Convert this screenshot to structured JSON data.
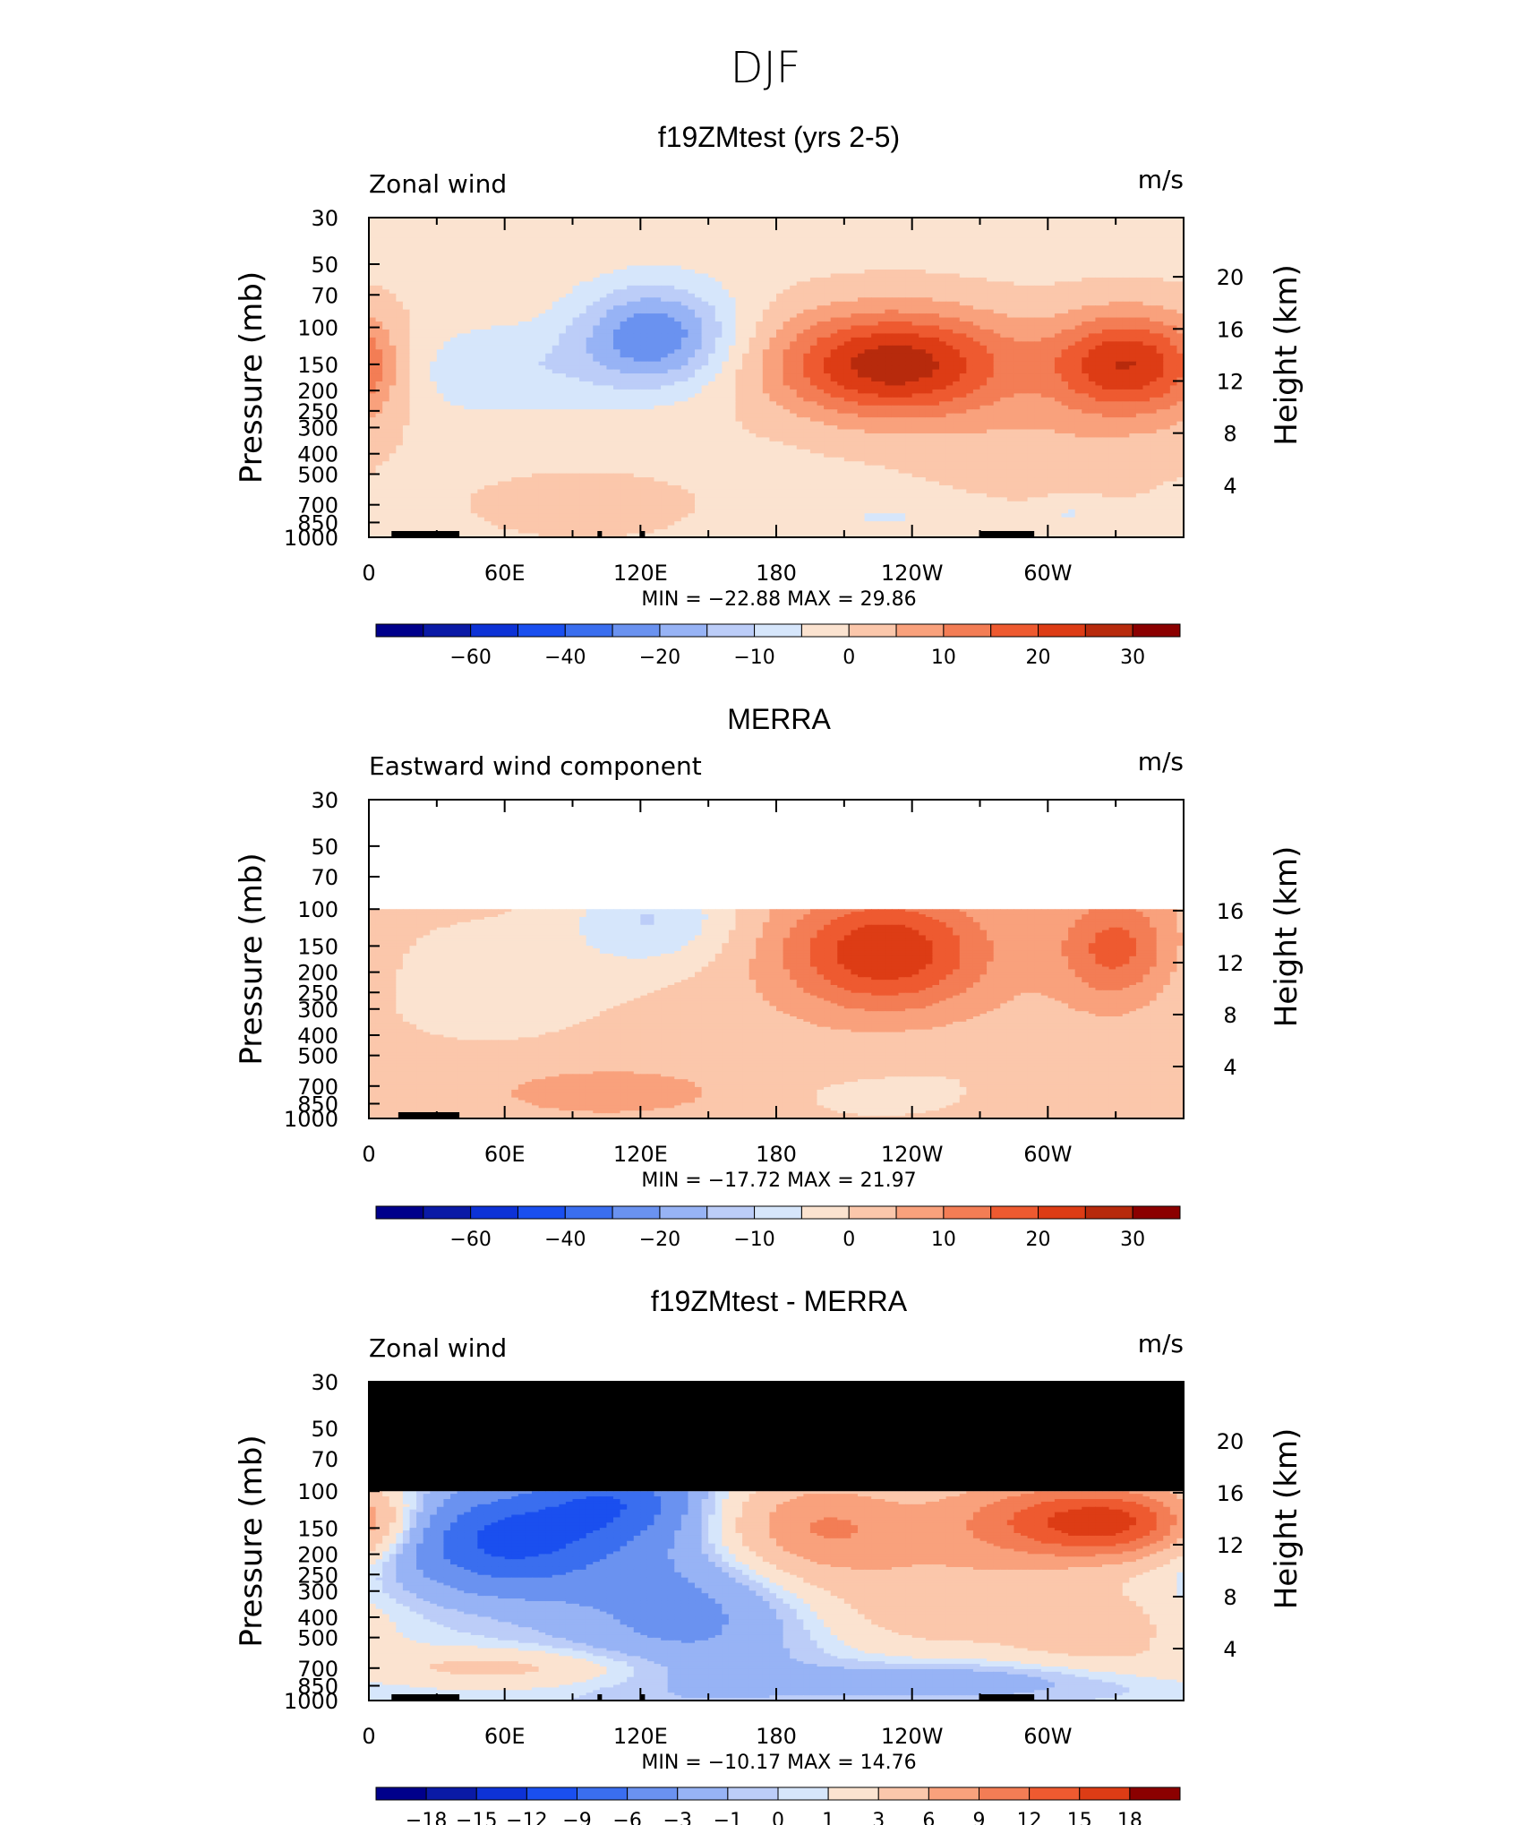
{
  "figure": {
    "title": "DJF"
  },
  "chart_data": [
    {
      "type": "heatmap",
      "title": "f19ZMtest (yrs 2-5)",
      "left_label": "Zonal wind",
      "units": "m/s",
      "ylabel": "Pressure (mb)",
      "ylabel_right": "Height (km)",
      "x_ticks": [
        "0",
        "60E",
        "120E",
        "180",
        "120W",
        "60W"
      ],
      "x_values": [
        0,
        60,
        120,
        180,
        240,
        300
      ],
      "xlim": [
        0,
        360
      ],
      "y_ticks": [
        "30",
        "50",
        "70",
        "100",
        "150",
        "200",
        "250",
        "300",
        "400",
        "500",
        "700",
        "850",
        "1000"
      ],
      "y_values": [
        30,
        50,
        70,
        100,
        150,
        200,
        250,
        300,
        400,
        500,
        700,
        850,
        1000
      ],
      "ylim": [
        1000,
        30
      ],
      "log_scale_y": true,
      "right_ticks": [
        "20",
        "16",
        "12",
        "8",
        "4"
      ],
      "right_values": [
        20,
        16,
        12,
        8,
        4
      ],
      "stats": "MIN = −22.88   MAX =   29.86",
      "min": -22.88,
      "max": 29.86,
      "data_top": 30,
      "cells": [],
      "features": [
        {
          "x": 232,
          "p": 150,
          "amp": 29.86,
          "sx": 38,
          "sy": 0.42
        },
        {
          "x": 335,
          "p": 150,
          "amp": 26,
          "sx": 24,
          "sy": 0.4
        },
        {
          "x": 126,
          "p": 110,
          "amp": -22.88,
          "sx": 24,
          "sy": 0.4
        },
        {
          "x": 55,
          "p": 160,
          "amp": -8,
          "sx": 35,
          "sy": 0.35
        },
        {
          "x": 0,
          "p": 170,
          "amp": 3,
          "sx": 12,
          "sy": 0.45
        },
        {
          "x": 95,
          "p": 700,
          "amp": 6,
          "sx": 30,
          "sy": 0.22
        },
        {
          "x": 230,
          "p": 800,
          "amp": -4,
          "sx": 30,
          "sy": 0.15
        },
        {
          "x": 310,
          "p": 760,
          "amp": -5,
          "sx": 10,
          "sy": 0.12
        },
        {
          "x": 300,
          "p": 400,
          "amp": 4,
          "sx": 40,
          "sy": 0.45
        }
      ],
      "background": -1.5,
      "colorbar": {
        "levels": [
          "−60",
          "−40",
          "−20",
          "−10",
          "0",
          "10",
          "20",
          "30"
        ],
        "thresholds": [
          -70,
          -60,
          -50,
          -40,
          -30,
          -20,
          -15,
          -10,
          -5,
          0,
          5,
          10,
          15,
          20,
          25,
          30,
          35
        ],
        "colors": [
          "#00008b",
          "#0a1aa6",
          "#0d32d6",
          "#1a4fef",
          "#3a6eef",
          "#6a92f0",
          "#97b3f5",
          "#bccdf8",
          "#d6e6fb",
          "#fbe3d0",
          "#fbc7ab",
          "#f9a17c",
          "#f37d55",
          "#ee5a30",
          "#dd3c15",
          "#b72a0c",
          "#8b0000"
        ]
      },
      "topography": [
        [
          10,
          40
        ],
        [
          30,
          34
        ],
        [
          101,
          103
        ],
        [
          120,
          122
        ],
        [
          270,
          294
        ]
      ]
    },
    {
      "type": "heatmap",
      "title": "MERRA",
      "left_label": "Eastward wind component",
      "units": "m/s",
      "ylabel": "Pressure (mb)",
      "ylabel_right": "Height (km)",
      "x_ticks": [
        "0",
        "60E",
        "120E",
        "180",
        "120W",
        "60W"
      ],
      "x_values": [
        0,
        60,
        120,
        180,
        240,
        300
      ],
      "xlim": [
        0,
        360
      ],
      "y_ticks": [
        "30",
        "50",
        "70",
        "100",
        "150",
        "200",
        "250",
        "300",
        "400",
        "500",
        "700",
        "850",
        "1000"
      ],
      "y_values": [
        30,
        50,
        70,
        100,
        150,
        200,
        250,
        300,
        400,
        500,
        700,
        850,
        1000
      ],
      "ylim": [
        1000,
        30
      ],
      "log_scale_y": true,
      "right_ticks": [
        "16",
        "12",
        "8",
        "4"
      ],
      "right_values": [
        16,
        12,
        8,
        4
      ],
      "stats": "MIN = −17.72   MAX =   21.97",
      "min": -17.72,
      "max": 21.97,
      "data_top": 100,
      "features": [
        {
          "x": 228,
          "p": 160,
          "amp": 21.97,
          "sx": 32,
          "sy": 0.45
        },
        {
          "x": 330,
          "p": 155,
          "amp": 15,
          "sx": 18,
          "sy": 0.42
        },
        {
          "x": 125,
          "p": 110,
          "amp": -12,
          "sx": 26,
          "sy": 0.38
        },
        {
          "x": 55,
          "p": 220,
          "amp": -5,
          "sx": 45,
          "sy": 0.55
        },
        {
          "x": 105,
          "p": 740,
          "amp": 6,
          "sx": 35,
          "sy": 0.18
        },
        {
          "x": 225,
          "p": 820,
          "amp": -5,
          "sx": 20,
          "sy": 0.12
        },
        {
          "x": 260,
          "p": 600,
          "amp": -2.5,
          "sx": 60,
          "sy": 0.3
        }
      ],
      "background": 2.5,
      "colorbar": {
        "levels": [
          "−60",
          "−40",
          "−20",
          "−10",
          "0",
          "10",
          "20",
          "30"
        ],
        "thresholds": [
          -70,
          -60,
          -50,
          -40,
          -30,
          -20,
          -15,
          -10,
          -5,
          0,
          5,
          10,
          15,
          20,
          25,
          30,
          35
        ],
        "colors": [
          "#00008b",
          "#0a1aa6",
          "#0d32d6",
          "#1a4fef",
          "#3a6eef",
          "#6a92f0",
          "#97b3f5",
          "#bccdf8",
          "#d6e6fb",
          "#fbe3d0",
          "#fbc7ab",
          "#f9a17c",
          "#f37d55",
          "#ee5a30",
          "#dd3c15",
          "#b72a0c",
          "#8b0000"
        ]
      },
      "topography": [
        [
          13,
          40
        ],
        [
          27,
          36
        ]
      ]
    },
    {
      "type": "heatmap",
      "title": "f19ZMtest - MERRA",
      "left_label": "Zonal wind",
      "units": "m/s",
      "ylabel": "Pressure (mb)",
      "ylabel_right": "Height (km)",
      "x_ticks": [
        "0",
        "60E",
        "120E",
        "180",
        "120W",
        "60W"
      ],
      "x_values": [
        0,
        60,
        120,
        180,
        240,
        300
      ],
      "xlim": [
        0,
        360
      ],
      "y_ticks": [
        "30",
        "50",
        "70",
        "100",
        "150",
        "200",
        "250",
        "300",
        "400",
        "500",
        "700",
        "850",
        "1000"
      ],
      "y_values": [
        30,
        50,
        70,
        100,
        150,
        200,
        250,
        300,
        400,
        500,
        700,
        850,
        1000
      ],
      "ylim": [
        1000,
        30
      ],
      "log_scale_y": true,
      "right_ticks": [
        "20",
        "16",
        "12",
        "8",
        "4"
      ],
      "right_values": [
        20,
        16,
        12,
        8,
        4
      ],
      "stats": "MIN = −10.17   MAX =   14.76",
      "min": -10.17,
      "max": 14.76,
      "data_top": 100,
      "masked_top": true,
      "features": [
        {
          "x": 330,
          "p": 140,
          "amp": 14.76,
          "sx": 30,
          "sy": 0.3
        },
        {
          "x": 200,
          "p": 150,
          "amp": 9,
          "sx": 30,
          "sy": 0.4
        },
        {
          "x": 280,
          "p": 140,
          "amp": 7,
          "sx": 30,
          "sy": 0.4
        },
        {
          "x": 60,
          "p": 170,
          "amp": -10.17,
          "sx": 35,
          "sy": 0.4
        },
        {
          "x": 110,
          "p": 110,
          "amp": -7,
          "sx": 25,
          "sy": 0.3
        },
        {
          "x": 140,
          "p": 380,
          "amp": -4,
          "sx": 40,
          "sy": 0.6
        },
        {
          "x": 60,
          "p": 700,
          "amp": 3.5,
          "sx": 50,
          "sy": 0.15
        },
        {
          "x": 260,
          "p": 800,
          "amp": -3,
          "sx": 60,
          "sy": 0.15
        },
        {
          "x": 245,
          "p": 350,
          "amp": 4,
          "sx": 35,
          "sy": 0.4
        },
        {
          "x": 320,
          "p": 450,
          "amp": 4,
          "sx": 30,
          "sy": 0.35
        }
      ],
      "background": 0.3,
      "colorbar": {
        "levels": [
          "−18",
          "−15",
          "−12",
          "−9",
          "−6",
          "−3",
          "−1",
          "0",
          "1",
          "3",
          "6",
          "9",
          "12",
          "15",
          "18"
        ],
        "thresholds": [
          -18,
          -15,
          -12,
          -9,
          -6,
          -3,
          -1,
          0,
          1,
          3,
          6,
          9,
          12,
          15,
          18
        ],
        "colors": [
          "#00008b",
          "#0a1aa6",
          "#0d32d6",
          "#1a4fef",
          "#3a6eef",
          "#6a92f0",
          "#97b3f5",
          "#bccdf8",
          "#d6e6fb",
          "#fbe3d0",
          "#fbc7ab",
          "#f9a17c",
          "#f37d55",
          "#ee5a30",
          "#dd3c15",
          "#8b0000"
        ]
      },
      "topography": [
        [
          10,
          40
        ],
        [
          30,
          34
        ],
        [
          101,
          103
        ],
        [
          120,
          122
        ],
        [
          270,
          294
        ]
      ]
    }
  ]
}
